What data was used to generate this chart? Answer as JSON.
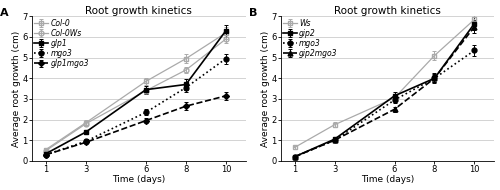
{
  "days": [
    1,
    3,
    6,
    8,
    10
  ],
  "panel_A": {
    "title": "Root growth kinetics",
    "label": "A",
    "series": [
      {
        "name": "Col-0",
        "y": [
          0.55,
          1.85,
          3.85,
          4.95,
          6.2
        ],
        "sd": [
          0.05,
          0.12,
          0.18,
          0.22,
          0.28
        ],
        "color": "#aaaaaa",
        "marker": "s",
        "linestyle": "-",
        "fillstyle": "none",
        "linewidth": 0.9,
        "markersize": 3.5
      },
      {
        "name": "Col-0Ws",
        "y": [
          0.5,
          1.8,
          3.4,
          4.4,
          5.9
        ],
        "sd": [
          0.05,
          0.1,
          0.12,
          0.15,
          0.2
        ],
        "color": "#aaaaaa",
        "marker": "o",
        "linestyle": "-",
        "fillstyle": "none",
        "linewidth": 0.9,
        "markersize": 3.5
      },
      {
        "name": "glp1",
        "y": [
          0.35,
          1.4,
          3.45,
          3.7,
          6.3
        ],
        "sd": [
          0.05,
          0.1,
          0.2,
          0.25,
          0.3
        ],
        "color": "#000000",
        "marker": "s",
        "linestyle": "-",
        "fillstyle": "full",
        "linewidth": 1.2,
        "markersize": 3.5
      },
      {
        "name": "mgo3",
        "y": [
          0.3,
          0.95,
          2.35,
          3.55,
          4.95
        ],
        "sd": [
          0.04,
          0.1,
          0.15,
          0.2,
          0.25
        ],
        "color": "#000000",
        "marker": "o",
        "linestyle": ":",
        "fillstyle": "full",
        "linewidth": 1.2,
        "markersize": 3.5
      },
      {
        "name": "glp1mgo3",
        "y": [
          0.3,
          0.9,
          1.95,
          2.65,
          3.15
        ],
        "sd": [
          0.04,
          0.08,
          0.12,
          0.18,
          0.2
        ],
        "color": "#000000",
        "marker": "D",
        "linestyle": "--",
        "fillstyle": "full",
        "linewidth": 1.2,
        "markersize": 3.0
      }
    ]
  },
  "panel_B": {
    "title": "Root growth kinetics",
    "label": "B",
    "series": [
      {
        "name": "Ws",
        "y": [
          0.65,
          1.75,
          3.05,
          5.1,
          6.85
        ],
        "sd": [
          0.06,
          0.12,
          0.15,
          0.2,
          0.25
        ],
        "color": "#aaaaaa",
        "marker": "s",
        "linestyle": "-",
        "fillstyle": "none",
        "linewidth": 0.9,
        "markersize": 3.5
      },
      {
        "name": "gip2",
        "y": [
          0.2,
          1.05,
          3.15,
          4.0,
          6.65
        ],
        "sd": [
          0.05,
          0.1,
          0.2,
          0.25,
          0.3
        ],
        "color": "#000000",
        "marker": "s",
        "linestyle": "-",
        "fillstyle": "full",
        "linewidth": 1.2,
        "markersize": 3.5
      },
      {
        "name": "mgo3",
        "y": [
          0.2,
          1.0,
          2.95,
          4.0,
          5.35
        ],
        "sd": [
          0.04,
          0.1,
          0.15,
          0.2,
          0.25
        ],
        "color": "#000000",
        "marker": "o",
        "linestyle": ":",
        "fillstyle": "full",
        "linewidth": 1.2,
        "markersize": 3.5
      },
      {
        "name": "gip2mgo3",
        "y": [
          0.2,
          1.0,
          2.5,
          4.0,
          6.5
        ],
        "sd": [
          0.04,
          0.08,
          0.12,
          0.18,
          0.3
        ],
        "color": "#000000",
        "marker": "^",
        "linestyle": "--",
        "fillstyle": "full",
        "linewidth": 1.2,
        "markersize": 3.5
      }
    ]
  },
  "xlabel": "Time (days)",
  "ylabel": "Average root growth (cm)",
  "ylim": [
    0,
    7
  ],
  "yticks": [
    0,
    1,
    2,
    3,
    4,
    5,
    6,
    7
  ],
  "xticks": [
    1,
    3,
    6,
    8,
    10
  ],
  "bg_color": "#ffffff",
  "grid_color": "#cccccc",
  "legend_fontsize": 5.5,
  "axis_fontsize": 6.5,
  "tick_fontsize": 6.0,
  "title_fontsize": 7.5
}
